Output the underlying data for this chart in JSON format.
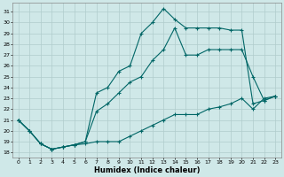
{
  "xlabel": "Humidex (Indice chaleur)",
  "background_color": "#cfe8e8",
  "grid_color": "#b0cccc",
  "line_color": "#006666",
  "x_ticks": [
    0,
    1,
    2,
    3,
    4,
    5,
    6,
    7,
    8,
    9,
    10,
    11,
    12,
    13,
    14,
    15,
    16,
    17,
    18,
    19,
    20,
    21,
    22,
    23
  ],
  "y_ticks": [
    18,
    19,
    20,
    21,
    22,
    23,
    24,
    25,
    26,
    27,
    28,
    29,
    30,
    31
  ],
  "xlim": [
    -0.5,
    23.5
  ],
  "ylim": [
    17.5,
    31.8
  ],
  "line1_x": [
    0,
    1,
    2,
    3,
    4,
    5,
    6,
    7,
    8,
    9,
    10,
    11,
    12,
    13,
    14,
    15,
    16,
    17,
    18,
    19,
    20,
    21,
    22,
    23
  ],
  "line1_y": [
    21.0,
    20.0,
    18.8,
    18.3,
    18.5,
    18.7,
    18.8,
    19.0,
    19.0,
    19.0,
    19.5,
    20.0,
    20.5,
    21.0,
    21.5,
    21.5,
    21.5,
    22.0,
    22.2,
    22.5,
    23.0,
    22.0,
    23.0,
    23.2
  ],
  "line2_x": [
    0,
    1,
    2,
    3,
    4,
    5,
    6,
    7,
    8,
    9,
    10,
    11,
    12,
    13,
    14,
    15,
    16,
    17,
    18,
    19,
    20,
    21,
    22,
    23
  ],
  "line2_y": [
    21.0,
    20.0,
    18.8,
    18.3,
    18.5,
    18.7,
    19.0,
    21.8,
    22.5,
    23.5,
    24.5,
    25.0,
    26.5,
    27.5,
    29.5,
    27.0,
    27.0,
    27.5,
    27.5,
    27.5,
    27.5,
    25.0,
    22.8,
    23.2
  ],
  "line3_x": [
    0,
    1,
    2,
    3,
    4,
    5,
    6,
    7,
    8,
    9,
    10,
    11,
    12,
    13,
    14,
    15,
    16,
    17,
    18,
    19,
    20,
    21,
    22,
    23
  ],
  "line3_y": [
    21.0,
    20.0,
    18.8,
    18.3,
    18.5,
    18.7,
    19.0,
    23.5,
    24.0,
    25.5,
    26.0,
    29.0,
    30.0,
    31.3,
    30.3,
    29.5,
    29.5,
    29.5,
    29.5,
    29.3,
    29.3,
    22.5,
    22.8,
    23.2
  ]
}
